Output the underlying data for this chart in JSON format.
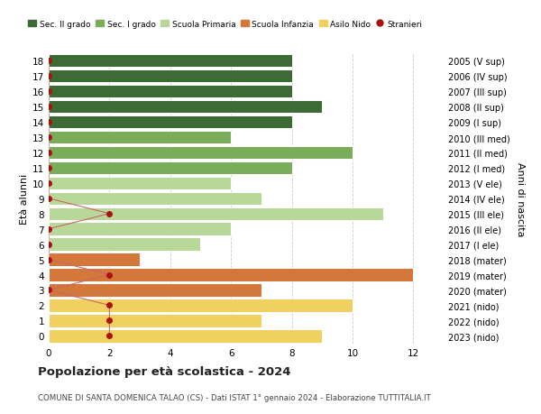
{
  "ages": [
    18,
    17,
    16,
    15,
    14,
    13,
    12,
    11,
    10,
    9,
    8,
    7,
    6,
    5,
    4,
    3,
    2,
    1,
    0
  ],
  "right_labels": [
    "2005 (V sup)",
    "2006 (IV sup)",
    "2007 (III sup)",
    "2008 (II sup)",
    "2009 (I sup)",
    "2010 (III med)",
    "2011 (II med)",
    "2012 (I med)",
    "2013 (V ele)",
    "2014 (IV ele)",
    "2015 (III ele)",
    "2016 (II ele)",
    "2017 (I ele)",
    "2018 (mater)",
    "2019 (mater)",
    "2020 (mater)",
    "2021 (nido)",
    "2022 (nido)",
    "2023 (nido)"
  ],
  "bar_values": [
    8,
    8,
    8,
    9,
    8,
    6,
    10,
    8,
    6,
    7,
    11,
    6,
    5,
    3,
    12,
    7,
    10,
    7,
    9
  ],
  "bar_colors": [
    "#3d6b35",
    "#3d6b35",
    "#3d6b35",
    "#3d6b35",
    "#3d6b35",
    "#7aad5a",
    "#7aad5a",
    "#7aad5a",
    "#b8d89a",
    "#b8d89a",
    "#b8d89a",
    "#b8d89a",
    "#b8d89a",
    "#d4773a",
    "#d4773a",
    "#d4773a",
    "#f0d060",
    "#f0d060",
    "#f0d060"
  ],
  "stranieri_values": [
    0,
    0,
    0,
    0,
    0,
    0,
    0,
    0,
    0,
    0,
    2,
    0,
    0,
    0,
    2,
    0,
    2,
    2,
    2
  ],
  "stranieri_color": "#aa1111",
  "stranieri_line_color": "#cc6666",
  "legend_entries": [
    {
      "label": "Sec. II grado",
      "color": "#3d6b35"
    },
    {
      "label": "Sec. I grado",
      "color": "#7aad5a"
    },
    {
      "label": "Scuola Primaria",
      "color": "#b8d89a"
    },
    {
      "label": "Scuola Infanzia",
      "color": "#d4773a"
    },
    {
      "label": "Asilo Nido",
      "color": "#f0d060"
    }
  ],
  "ylabel_left": "Età alunni",
  "ylabel_right": "Anni di nascita",
  "title": "Popolazione per età scolastica - 2024",
  "subtitle": "COMUNE DI SANTA DOMENICA TALAO (CS) - Dati ISTAT 1° gennaio 2024 - Elaborazione TUTTITALIA.IT",
  "xlim": [
    0,
    13
  ],
  "xticks": [
    0,
    2,
    4,
    6,
    8,
    10,
    12
  ],
  "background_color": "#ffffff",
  "bar_edge_color": "#ffffff",
  "grid_color": "#cccccc"
}
